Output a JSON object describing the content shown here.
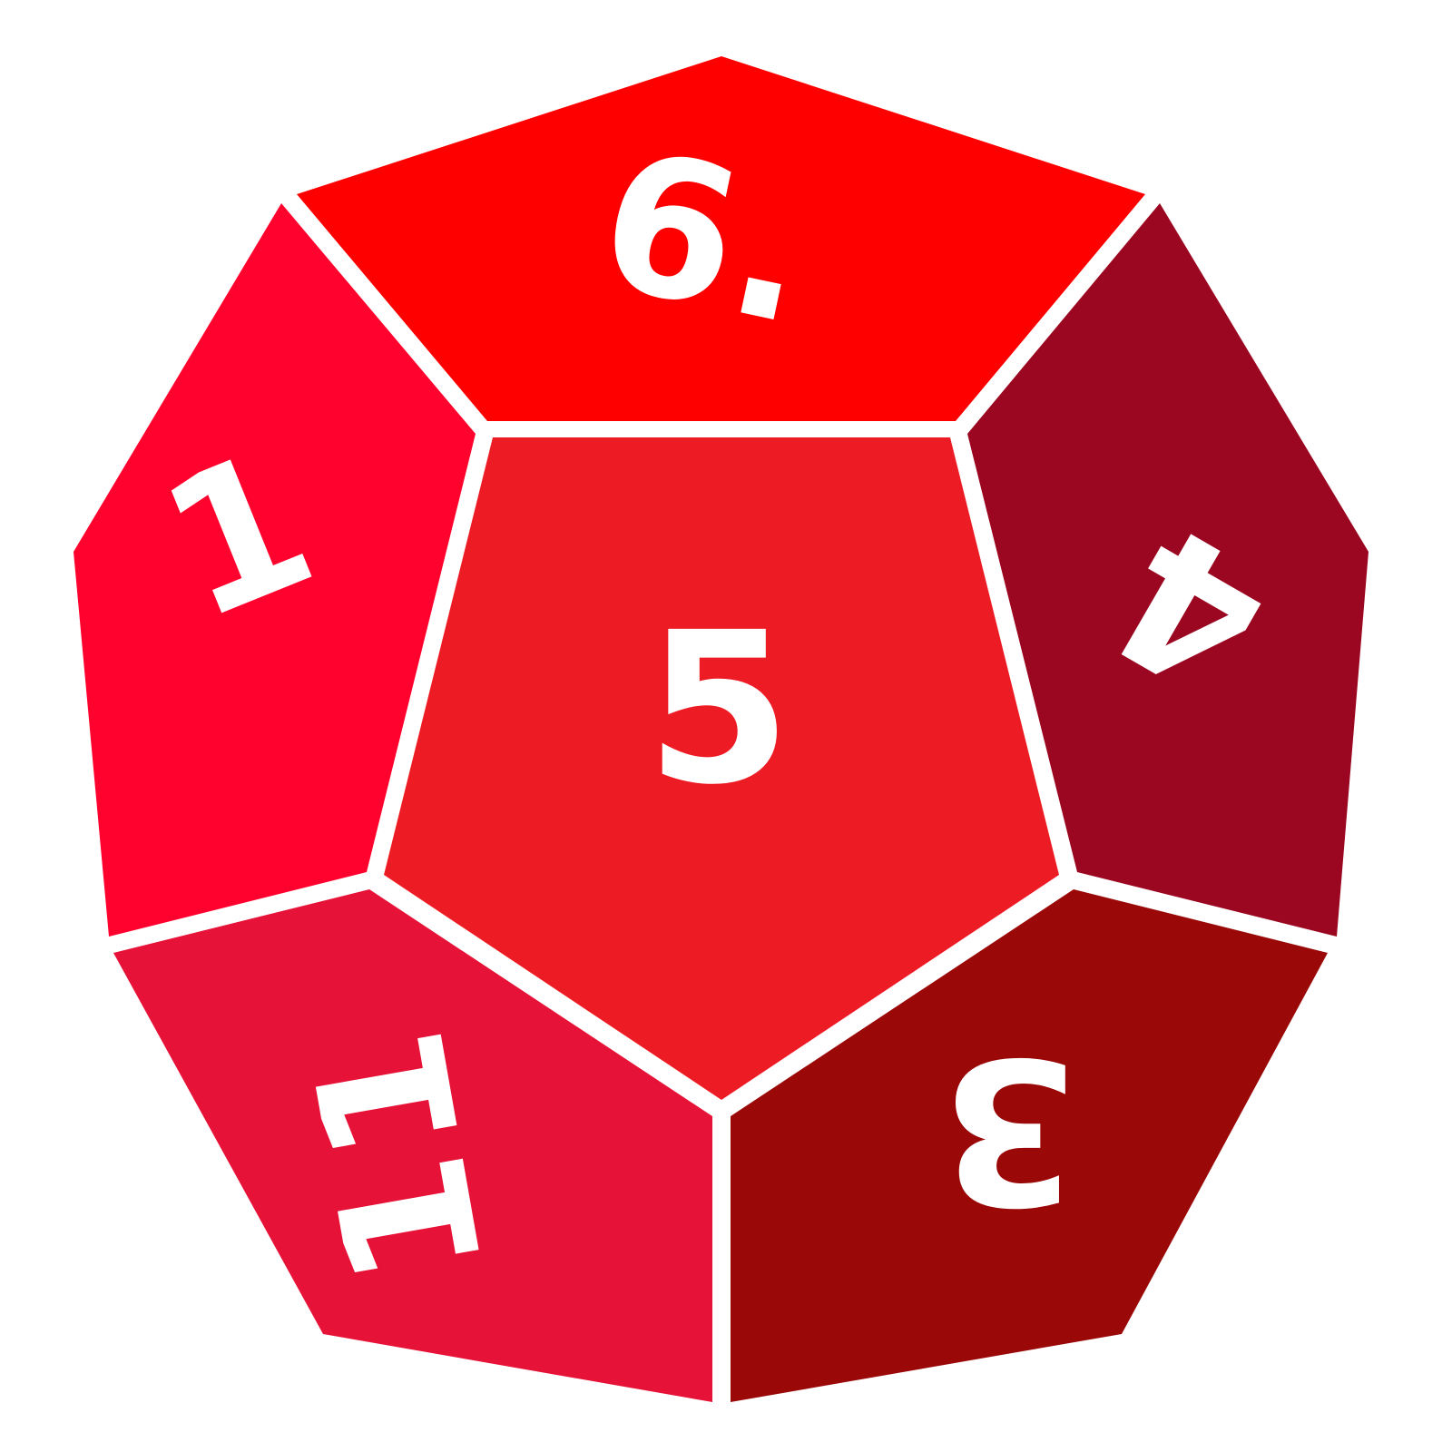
{
  "die": {
    "type": "d12",
    "faces": [
      {
        "id": "top",
        "label": "6.",
        "color": "#ff0000"
      },
      {
        "id": "upper-left",
        "label": "1",
        "color": "#ff032e"
      },
      {
        "id": "center",
        "label": "5",
        "color": "#ed1c24"
      },
      {
        "id": "upper-right",
        "label": "4",
        "color": "#9b0721"
      },
      {
        "id": "lower-left",
        "label": "11",
        "color": "#e71237"
      },
      {
        "id": "lower-right",
        "label": "3",
        "color": "#9b0808"
      }
    ],
    "edge_color": "#ffffff",
    "background": "#ffffff"
  }
}
